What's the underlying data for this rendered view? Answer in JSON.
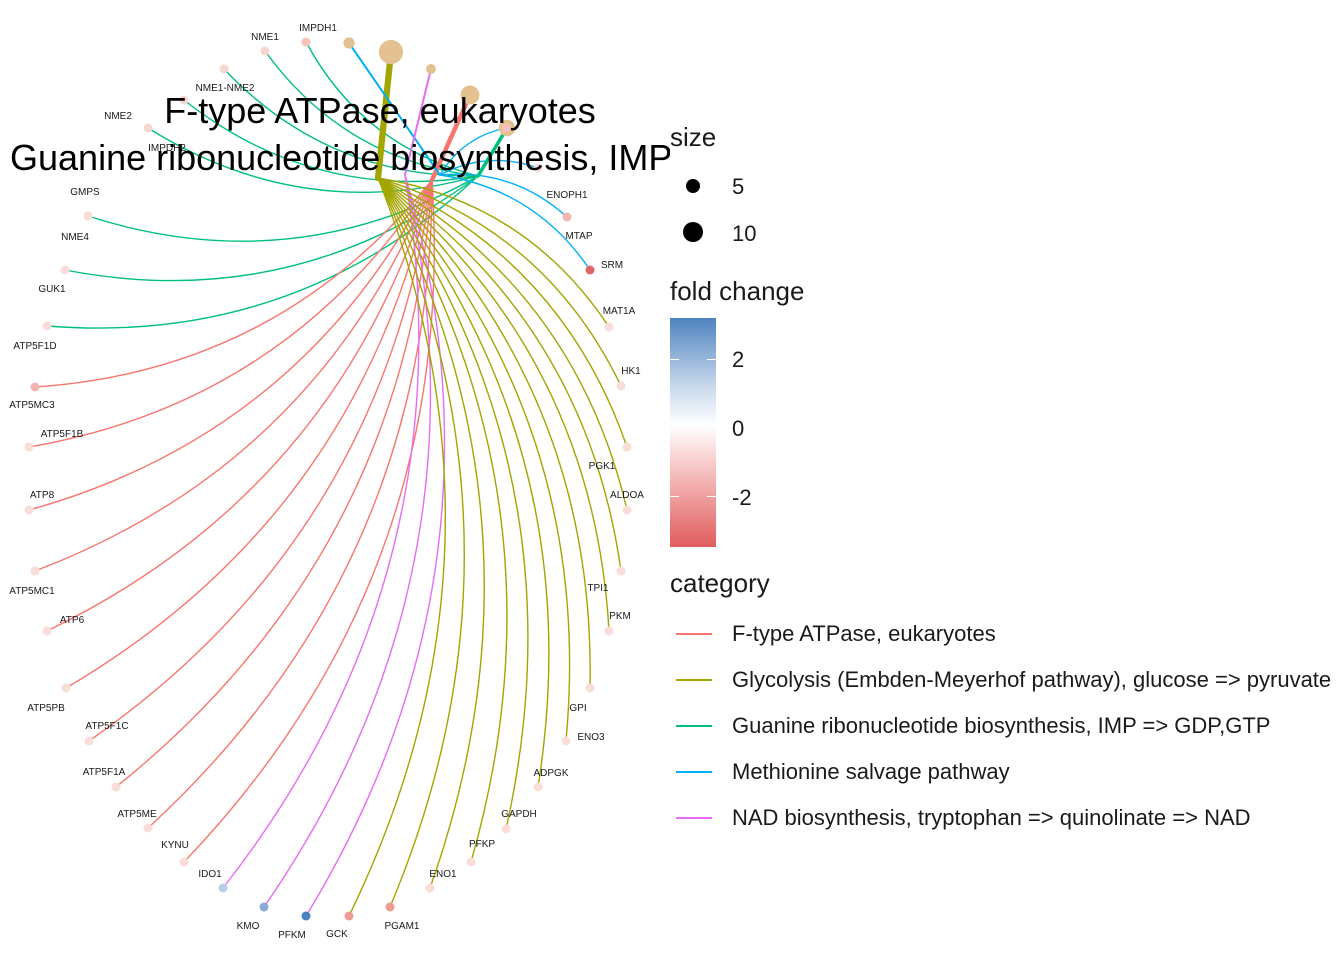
{
  "title_lines": [
    "F-type ATPase, eukaryotes",
    "Guanine ribonucleotide biosynthesis, IMP => GDP,GTP"
  ],
  "legend": {
    "size_title": "size",
    "size_items": [
      {
        "label": "5",
        "size": 5
      },
      {
        "label": "10",
        "size": 10
      }
    ],
    "fold_title": "fold change",
    "fold_ticks": [
      {
        "label": "2",
        "value": 2
      },
      {
        "label": "0",
        "value": 0
      },
      {
        "label": "-2",
        "value": -2
      }
    ],
    "category_title": "category",
    "categories": [
      {
        "label": "F-type ATPase, eukaryotes",
        "color": "#f8766d"
      },
      {
        "label": "Glycolysis (Embden-Meyerhof pathway), glucose => pyruvate",
        "color": "#a3a500"
      },
      {
        "label": "Guanine ribonucleotide biosynthesis, IMP => GDP,GTP",
        "color": "#00bf7d"
      },
      {
        "label": "Methionine salvage pathway",
        "color": "#00b0f6"
      },
      {
        "label": "NAD biosynthesis, tryptophan => quinolinate => NAD",
        "color": "#e76bf3"
      }
    ]
  },
  "genes": [
    {
      "label": "IMPDH1",
      "color": "#f6c2bd",
      "cats": [
        2
      ]
    },
    {
      "label": "NME1",
      "color": "#f8d6d3",
      "cats": [
        2
      ]
    },
    {
      "label": "NME1-NME2",
      "color": "#f8d6d3",
      "cats": [
        2
      ]
    },
    {
      "label": "NME2",
      "color": "#f8d6d3",
      "cats": [
        2
      ]
    },
    {
      "label": "IMPDH2",
      "color": "#f8d6d3",
      "cats": [
        2
      ]
    },
    {
      "label": "GMPS",
      "color": "#fadcd9",
      "cats": [
        2
      ]
    },
    {
      "label": "NME4",
      "color": "#fadcd9",
      "cats": [
        2
      ]
    },
    {
      "label": "GUK1",
      "color": "#fadcd9",
      "cats": [
        2
      ]
    },
    {
      "label": "ATP5F1D",
      "color": "#f4b5b0",
      "cats": [
        0
      ]
    },
    {
      "label": "ATP5MC3",
      "color": "#fadcd9",
      "cats": [
        0
      ]
    },
    {
      "label": "ATP5F1B",
      "color": "#fadcd9",
      "cats": [
        0
      ]
    },
    {
      "label": "ATP8",
      "color": "#fadcd9",
      "cats": [
        0
      ]
    },
    {
      "label": "ATP5MC1",
      "color": "#fadcd9",
      "cats": [
        0
      ]
    },
    {
      "label": "ATP6",
      "color": "#fadcd9",
      "cats": [
        0
      ]
    },
    {
      "label": "ATP5PB",
      "color": "#fadcd9",
      "cats": [
        0
      ]
    },
    {
      "label": "ATP5F1C",
      "color": "#fadcd9",
      "cats": [
        0
      ]
    },
    {
      "label": "ATP5F1A",
      "color": "#fadcd9",
      "cats": [
        0
      ]
    },
    {
      "label": "ATP5ME",
      "color": "#fadcd9",
      "cats": [
        0
      ]
    },
    {
      "label": "KYNU",
      "color": "#b8cde6",
      "cats": [
        4
      ]
    },
    {
      "label": "IDO1",
      "color": "#8aacd4",
      "cats": [
        4
      ]
    },
    {
      "label": "KMO",
      "color": "#4a7fc0",
      "cats": [
        4
      ]
    },
    {
      "label": "PFKM",
      "color": "#ee9a95",
      "cats": [
        1
      ]
    },
    {
      "label": "GCK",
      "color": "#ee9a95",
      "cats": [
        1
      ]
    },
    {
      "label": "PGAM1",
      "color": "#fadcd9",
      "cats": [
        1
      ]
    },
    {
      "label": "ENO1",
      "color": "#fadcd9",
      "cats": [
        1
      ]
    },
    {
      "label": "PFKP",
      "color": "#fadcd9",
      "cats": [
        1
      ]
    },
    {
      "label": "GAPDH",
      "color": "#fadcd9",
      "cats": [
        1
      ]
    },
    {
      "label": "ADPGK",
      "color": "#fadcd9",
      "cats": [
        1
      ]
    },
    {
      "label": "ENO3",
      "color": "#fadcd9",
      "cats": [
        1
      ]
    },
    {
      "label": "GPI",
      "color": "#fadcd9",
      "cats": [
        1
      ]
    },
    {
      "label": "PKM",
      "color": "#fadcd9",
      "cats": [
        1
      ]
    },
    {
      "label": "TPI1",
      "color": "#fadcd9",
      "cats": [
        1
      ]
    },
    {
      "label": "ALDOA",
      "color": "#fadcd9",
      "cats": [
        1
      ]
    },
    {
      "label": "PGK1",
      "color": "#fadcd9",
      "cats": [
        1
      ]
    },
    {
      "label": "HK1",
      "color": "#fadcd9",
      "cats": [
        1
      ]
    },
    {
      "label": "MAT1A",
      "color": "#e06666",
      "cats": [
        3
      ]
    },
    {
      "label": "SRM",
      "color": "#f4b5b0",
      "cats": [
        3
      ]
    },
    {
      "label": "MTAP",
      "color": "#fadcd9",
      "cats": [
        3
      ]
    },
    {
      "label": "ENOPH1",
      "color": "#f6c2bd",
      "cats": [
        3
      ]
    }
  ],
  "categories_nodes": [
    {
      "name": "F-type ATPase, eukaryotes",
      "size": 10
    },
    {
      "name": "Glycolysis (Embden-Meyerhof pathway), glucose => pyruvate",
      "size": 14
    },
    {
      "name": "Guanine ribonucleotide biosynthesis, IMP => GDP,GTP",
      "size": 8
    },
    {
      "name": "Methionine salvage pathway",
      "size": 4
    },
    {
      "name": "NAD biosynthesis, tryptophan => quinolinate => NAD",
      "size": 3
    }
  ],
  "node_color": "#e3c190"
}
